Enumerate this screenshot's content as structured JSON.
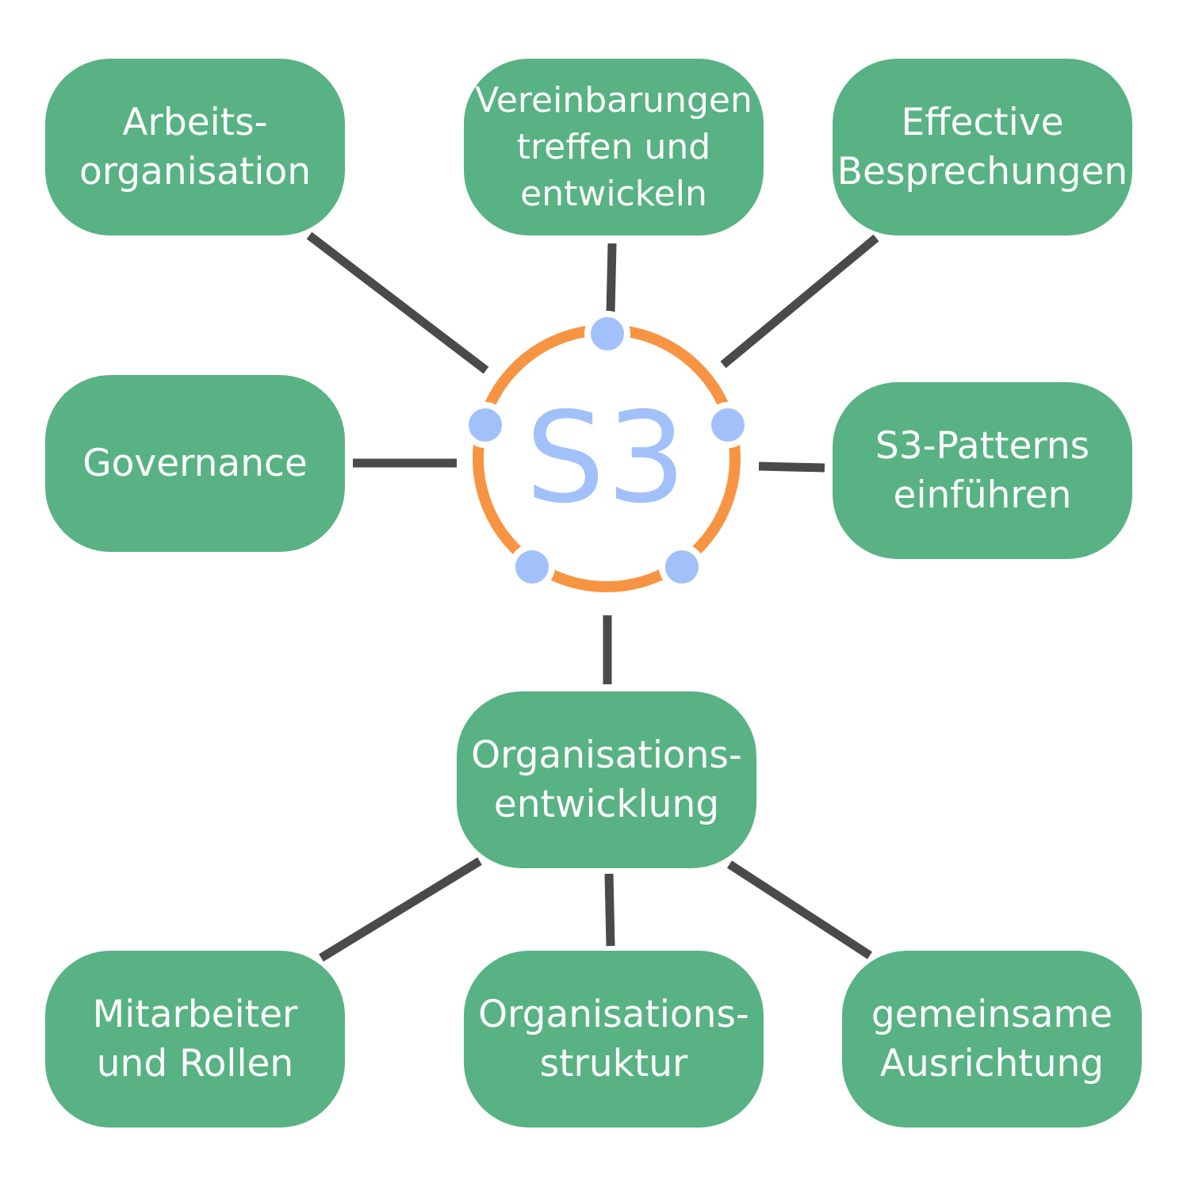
{
  "center": {
    "logo_text": "S3",
    "ring_color": "#f79443",
    "dot_color": "#a2c1fb"
  },
  "colors": {
    "node_fill": "#58b283",
    "node_text": "#ffffff",
    "connector": "#4a4a4a"
  },
  "nodes": {
    "arbeitsorganisation": "Arbeits-\norganisation",
    "vereinbarungen": "Vereinbarungen\ntreffen und\nentwickeln",
    "effective_besprechungen": "Effective\nBesprechungen",
    "governance": "Governance",
    "s3_patterns": "S3-Patterns\neinführen",
    "organisationsentwicklung": "Organisations-\nentwicklung",
    "mitarbeiter_rollen": "Mitarbeiter\nund Rollen",
    "organisationsstruktur": "Organisations-\nstruktur",
    "gemeinsame_ausrichtung": "gemeinsame\nAusrichtung"
  }
}
